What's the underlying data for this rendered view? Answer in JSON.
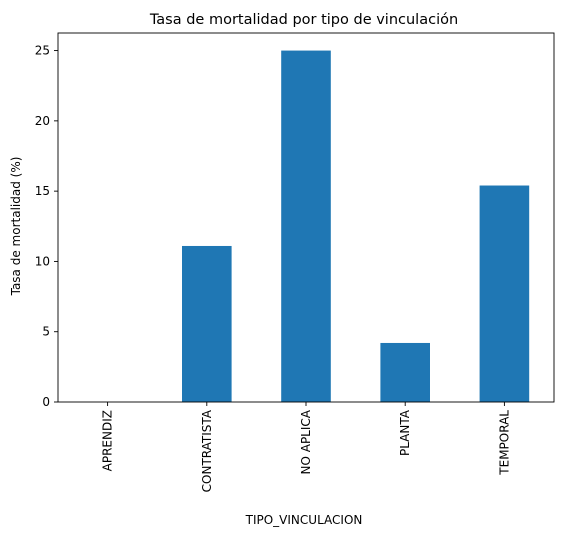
{
  "chart_data": {
    "type": "bar",
    "title": "Tasa de mortalidad por tipo de vinculación",
    "xlabel": "TIPO_VINCULACION",
    "ylabel": "Tasa de mortalidad (%)",
    "categories": [
      "APRENDIZ",
      "CONTRATISTA",
      "NO APLICA",
      "PLANTA",
      "TEMPORAL"
    ],
    "values": [
      0,
      11.1,
      25.0,
      4.2,
      15.4
    ],
    "ylim": [
      0,
      26.25
    ],
    "yticks": [
      0,
      5,
      10,
      15,
      20,
      25
    ],
    "bar_color": "#1f77b4",
    "grid": false,
    "legend": false
  }
}
